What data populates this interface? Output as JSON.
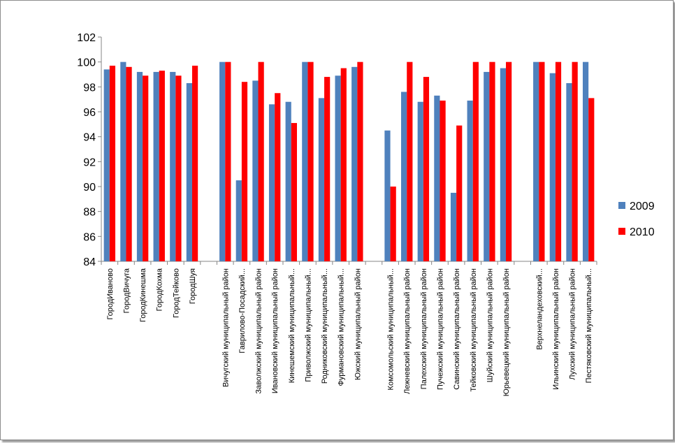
{
  "chart_data": {
    "type": "bar",
    "categories": [
      "ГородИваново",
      "ГородВичуга",
      "ГородКинешма",
      "ГородКохма",
      "ГородТейково",
      "ГородШуя",
      "",
      "Вичугский муниципальный район",
      "Гаврилово-Посадский...",
      "Заволжский муниципальный район",
      "Ивановский муниципальный район",
      "Кинешемский муниципальный...",
      "Приволжский муниципальный...",
      "Родниковский муниципальный...",
      "Фурмановский муниципальный...",
      "Южский муниципальный район",
      "",
      "Комсомольский муниципальный...",
      "Лежневский муниципальный район",
      "Палехский муниципальный район",
      "Пучежский муниципальный район",
      "Савинский муниципальный район",
      "Тейковский муниципальный район",
      "Шуйский муниципальный район",
      "Юрьевецкий муниципальный район",
      "",
      "Верхнеландеховский...",
      "Ильинский муниципальный район",
      "Лухский муниципальный район",
      "Пестяковский муниципальный..."
    ],
    "series": [
      {
        "name": "2009",
        "color": "#4f81bd",
        "values": [
          99.4,
          100,
          99.2,
          99.2,
          99.2,
          98.3,
          null,
          100,
          90.5,
          98.5,
          96.6,
          96.8,
          100,
          97.1,
          98.9,
          99.6,
          null,
          94.5,
          97.6,
          96.8,
          97.3,
          89.5,
          96.9,
          99.2,
          99.5,
          null,
          100,
          99.1,
          98.3,
          100
        ]
      },
      {
        "name": "2010",
        "color": "#ff0000",
        "values": [
          99.7,
          99.6,
          98.9,
          99.3,
          98.9,
          99.7,
          null,
          100,
          98.4,
          100,
          97.5,
          95.1,
          100,
          98.8,
          99.5,
          100,
          null,
          90.0,
          100,
          98.8,
          96.9,
          94.9,
          100,
          100,
          100,
          null,
          100,
          100,
          100,
          97.1
        ]
      }
    ],
    "ylim": [
      84,
      102
    ],
    "yticks": [
      84,
      86,
      88,
      90,
      92,
      94,
      96,
      98,
      100,
      102
    ],
    "grid": false,
    "legend": "right",
    "title": "",
    "xlabel": "",
    "ylabel": ""
  }
}
